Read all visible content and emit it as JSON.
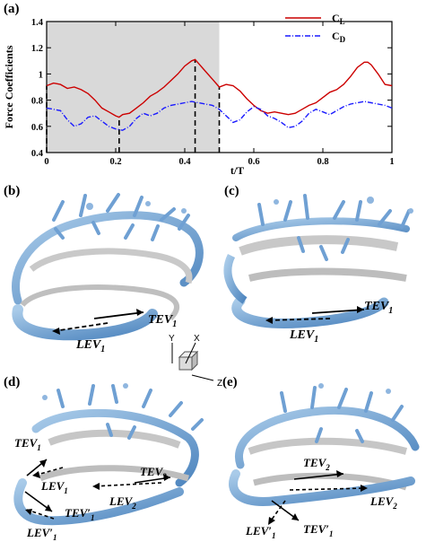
{
  "panels": {
    "a": "(a)",
    "b": "(b)",
    "c": "(c)",
    "d": "(d)",
    "e": "(e)"
  },
  "chart_data": {
    "type": "line",
    "xlabel": "t/T",
    "ylabel": "Force Coefficients",
    "xlim": [
      0,
      1
    ],
    "ylim": [
      0.4,
      1.4
    ],
    "xticks": [
      "0",
      "0.2",
      "0.4",
      "0.6",
      "0.8",
      "1"
    ],
    "yticks": [
      "0.4",
      "0.6",
      "0.8",
      "1",
      "1.2",
      "1.4"
    ],
    "shaded_region": [
      0,
      0.5
    ],
    "dashed_markers": [
      0,
      0.21,
      0.43,
      0.5
    ],
    "legend_position": "top-right",
    "colors": {
      "CL": "#cc0000",
      "CD": "#1a1aff",
      "shade": "#d9d9d9"
    },
    "series": [
      {
        "name": "C",
        "sub": "L",
        "x": [
          0,
          0.02,
          0.04,
          0.06,
          0.08,
          0.1,
          0.12,
          0.14,
          0.16,
          0.18,
          0.2,
          0.21,
          0.22,
          0.24,
          0.26,
          0.28,
          0.3,
          0.32,
          0.34,
          0.36,
          0.38,
          0.4,
          0.42,
          0.43,
          0.44,
          0.46,
          0.48,
          0.5,
          0.52,
          0.54,
          0.56,
          0.58,
          0.6,
          0.62,
          0.64,
          0.66,
          0.68,
          0.7,
          0.72,
          0.74,
          0.76,
          0.78,
          0.8,
          0.82,
          0.84,
          0.86,
          0.88,
          0.9,
          0.92,
          0.93,
          0.94,
          0.96,
          0.98,
          1.0
        ],
        "y": [
          0.91,
          0.93,
          0.92,
          0.89,
          0.9,
          0.88,
          0.85,
          0.8,
          0.74,
          0.71,
          0.68,
          0.67,
          0.69,
          0.7,
          0.74,
          0.78,
          0.83,
          0.86,
          0.9,
          0.95,
          1.0,
          1.06,
          1.1,
          1.11,
          1.08,
          1.02,
          0.96,
          0.9,
          0.92,
          0.91,
          0.87,
          0.81,
          0.76,
          0.72,
          0.7,
          0.71,
          0.7,
          0.69,
          0.7,
          0.73,
          0.76,
          0.78,
          0.82,
          0.86,
          0.88,
          0.92,
          0.98,
          1.05,
          1.09,
          1.09,
          1.07,
          1.0,
          0.92,
          0.91
        ]
      },
      {
        "name": "C",
        "sub": "D",
        "x": [
          0,
          0.02,
          0.04,
          0.06,
          0.08,
          0.1,
          0.12,
          0.14,
          0.16,
          0.18,
          0.2,
          0.22,
          0.24,
          0.26,
          0.28,
          0.3,
          0.32,
          0.34,
          0.36,
          0.38,
          0.4,
          0.42,
          0.44,
          0.46,
          0.48,
          0.5,
          0.52,
          0.54,
          0.56,
          0.58,
          0.6,
          0.62,
          0.64,
          0.66,
          0.68,
          0.7,
          0.72,
          0.74,
          0.76,
          0.78,
          0.8,
          0.82,
          0.84,
          0.86,
          0.88,
          0.9,
          0.92,
          0.94,
          0.96,
          0.98,
          1.0
        ],
        "y": [
          0.74,
          0.73,
          0.72,
          0.65,
          0.6,
          0.62,
          0.67,
          0.68,
          0.64,
          0.6,
          0.58,
          0.57,
          0.6,
          0.66,
          0.7,
          0.68,
          0.7,
          0.74,
          0.76,
          0.77,
          0.78,
          0.79,
          0.78,
          0.77,
          0.76,
          0.73,
          0.68,
          0.63,
          0.65,
          0.71,
          0.75,
          0.73,
          0.68,
          0.66,
          0.63,
          0.59,
          0.6,
          0.64,
          0.7,
          0.73,
          0.71,
          0.69,
          0.72,
          0.75,
          0.77,
          0.78,
          0.79,
          0.78,
          0.77,
          0.76,
          0.74
        ]
      }
    ]
  },
  "vortex_labels": {
    "b_tev1": "TEV",
    "b_lev1": "LEV",
    "c_tev1": "TEV",
    "c_lev1": "LEV",
    "d_tev1": "TEV",
    "d_lev1": "LEV",
    "d_lev2": "LEV",
    "d_tev2": "TEV",
    "d_tev1p": "TEV′",
    "d_lev1p": "LEV′",
    "e_tev2": "TEV",
    "e_lev2": "LEV",
    "e_lev1p": "LEV′",
    "e_tev1p": "TEV′",
    "sub1": "1",
    "sub2": "2"
  },
  "axes_triad": {
    "y": "Y",
    "x": "X",
    "z": "Z"
  }
}
